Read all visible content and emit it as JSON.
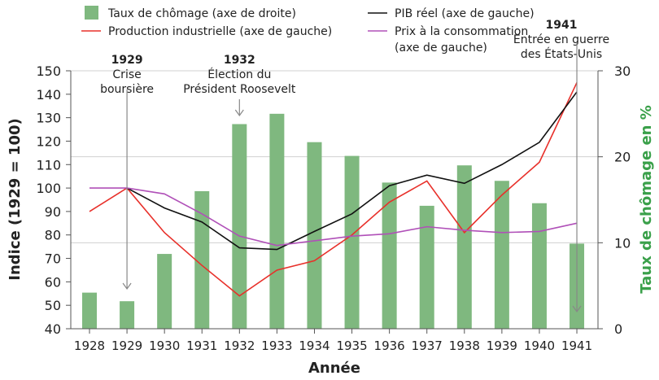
{
  "chart_data": {
    "type": "bar+line",
    "xlabel": "Année",
    "ylabel": "Indice (1929 = 100)",
    "y2label": "Taux de chômage en %",
    "ylim": [
      40,
      150
    ],
    "y2lim": [
      0,
      30
    ],
    "yticks": [
      40,
      50,
      60,
      70,
      80,
      90,
      100,
      110,
      120,
      130,
      140,
      150
    ],
    "y2ticks": [
      0,
      10,
      20,
      30
    ],
    "grid": "horizontal at right-axis ticks",
    "legend": "top",
    "categories": [
      "1928",
      "1929",
      "1930",
      "1931",
      "1932",
      "1933",
      "1934",
      "1935",
      "1936",
      "1937",
      "1938",
      "1939",
      "1940",
      "1941"
    ],
    "bars": {
      "name": "Taux de chômage (axe de droite)",
      "color": "#7fb87f",
      "axis": "right",
      "values": [
        4.2,
        3.2,
        8.7,
        16.0,
        23.8,
        25.0,
        21.7,
        20.1,
        17.0,
        14.3,
        19.0,
        17.2,
        14.6,
        9.9
      ]
    },
    "series": [
      {
        "name": "Production industrielle (axe de gauche)",
        "color": "#e8302a",
        "values": [
          90,
          100,
          81,
          67,
          54,
          65,
          69,
          80,
          94,
          103,
          81,
          97,
          111,
          145
        ]
      },
      {
        "name": "PIB réel (axe de gauche)",
        "color": "#111111",
        "values": [
          null,
          100,
          91.5,
          85.5,
          74.5,
          73.8,
          81.5,
          89,
          101,
          105.5,
          102,
          110,
          119.5,
          141
        ]
      },
      {
        "name": "Prix à la consommation (axe de gauche)",
        "color": "#b050b8",
        "values": [
          100,
          100,
          97.5,
          89,
          79.5,
          75.5,
          77.5,
          79.5,
          80.5,
          83.5,
          82,
          81,
          81.5,
          85
        ]
      }
    ],
    "legend_lines": {
      "prix_1": "Prix à la consommation",
      "prix_2": "(axe de gauche)"
    },
    "annotations": [
      {
        "year": "1929",
        "label": "1929",
        "lines": [
          "Crise",
          "boursière"
        ]
      },
      {
        "year": "1932",
        "label": "1932",
        "lines": [
          "Élection du",
          "Président Roosevelt"
        ]
      },
      {
        "year": "1941",
        "label": "1941",
        "lines": [
          "Entrée en guerre",
          "des États-Unis"
        ]
      }
    ]
  }
}
